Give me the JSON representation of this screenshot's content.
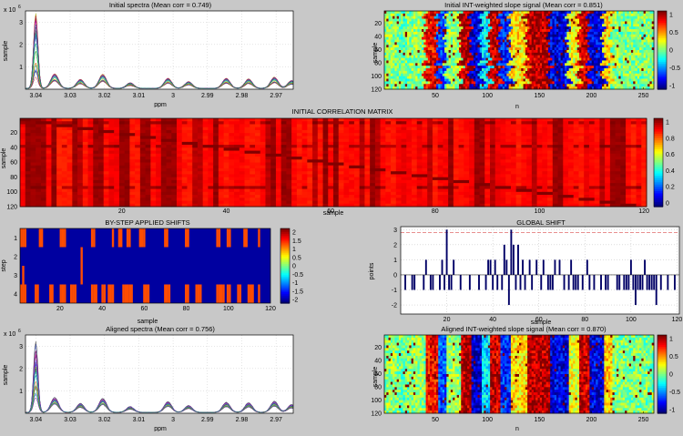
{
  "panels": {
    "spectra_initial": {
      "title": "Initial spectra (Mean corr = 0.749)",
      "xlabel": "ppm",
      "ylabel": "sample",
      "exp": "x 10",
      "exp_power": "6",
      "xticks": [
        "3.04",
        "3.03",
        "3.02",
        "3.01",
        "3",
        "2.99",
        "2.98",
        "2.97"
      ],
      "yticks": [
        "1",
        "2",
        "3"
      ]
    },
    "slope_initial": {
      "title": "Initial INT-weighted slope signal (Mean corr = 0.851)",
      "xlabel": "n",
      "ylabel": "sample",
      "xticks": [
        "50",
        "100",
        "150",
        "200",
        "250"
      ],
      "yticks": [
        "20",
        "40",
        "60",
        "80",
        "100",
        "120"
      ],
      "cbar_ticks": [
        "1",
        "0.5",
        "0",
        "-0.5",
        "-1"
      ]
    },
    "corr_matrix": {
      "title": "INITIAL CORRELATION MATRIX",
      "xlabel": "sample",
      "ylabel": "sample",
      "xticks": [
        "20",
        "40",
        "60",
        "80",
        "100",
        "120"
      ],
      "yticks": [
        "20",
        "40",
        "60",
        "80",
        "100",
        "120"
      ],
      "cbar_ticks": [
        "1",
        "0.8",
        "0.6",
        "0.4",
        "0.2",
        "0"
      ]
    },
    "shifts": {
      "title": "BY-STEP APPLIED SHIFTS",
      "xlabel": "sample",
      "ylabel": "step",
      "xticks": [
        "20",
        "40",
        "60",
        "80",
        "100",
        "120"
      ],
      "yticks": [
        "1",
        "2",
        "3",
        "4"
      ],
      "cbar_ticks": [
        "2",
        "1.5",
        "1",
        "0.5",
        "0",
        "-0.5",
        "-1",
        "-1.5",
        "-2"
      ]
    },
    "global_shift": {
      "title": "GLOBAL SHIFT",
      "xlabel": "sample",
      "ylabel": "points",
      "xticks": [
        "20",
        "40",
        "60",
        "80",
        "100",
        "120"
      ],
      "yticks": [
        "3",
        "2",
        "1",
        "0",
        "-1",
        "-2"
      ]
    },
    "spectra_aligned": {
      "title": "Aligned spectra (Mean corr = 0.756)",
      "xlabel": "ppm",
      "ylabel": "sample",
      "exp": "x 10",
      "exp_power": "6",
      "xticks": [
        "3.04",
        "3.03",
        "3.02",
        "3.01",
        "3",
        "2.99",
        "2.98",
        "2.97"
      ],
      "yticks": [
        "1",
        "2",
        "3"
      ]
    },
    "slope_aligned": {
      "title": "Aligned INT-weighted slope signal (Mean corr = 0.870)",
      "xlabel": "n",
      "ylabel": "sample",
      "xticks": [
        "50",
        "100",
        "150",
        "200",
        "250"
      ],
      "yticks": [
        "20",
        "40",
        "60",
        "80",
        "100",
        "120"
      ],
      "cbar_ticks": [
        "1",
        "0.5",
        "0",
        "-0.5",
        "-1"
      ]
    }
  },
  "chart_data": [
    {
      "type": "line",
      "title": "Initial spectra (Mean corr = 0.749)",
      "xlabel": "ppm",
      "ylabel": "sample",
      "xlim": [
        3.043,
        2.965
      ],
      "ylim": [
        0,
        3.5
      ],
      "y_exponent": 6,
      "x_reversed": true,
      "peaks_ppm": [
        3.04,
        3.0345,
        3.027,
        3.0205,
        3.0125,
        3.0015,
        2.9955,
        2.9845,
        2.978,
        2.9705,
        2.9655
      ],
      "peak_heights_max": [
        3.35,
        0.65,
        0.4,
        0.62,
        0.25,
        0.45,
        0.3,
        0.45,
        0.42,
        0.5,
        0.35
      ],
      "note": ""
    },
    {
      "type": "heatmap",
      "title": "Initial INT-weighted slope signal (Mean corr = 0.851)",
      "xlabel": "n",
      "ylabel": "sample",
      "xlim": [
        1,
        260
      ],
      "ylim": [
        1,
        120
      ],
      "clim": [
        -1,
        1
      ]
    },
    {
      "type": "heatmap",
      "title": "INITIAL CORRELATION MATRIX",
      "xlabel": "sample",
      "ylabel": "sample",
      "xlim": [
        1,
        120
      ],
      "ylim": [
        1,
        120
      ],
      "clim": [
        0,
        1
      ]
    },
    {
      "type": "heatmap",
      "title": "BY-STEP APPLIED SHIFTS",
      "xlabel": "sample",
      "ylabel": "step",
      "xlim": [
        1,
        120
      ],
      "ylim": [
        1,
        4
      ],
      "clim": [
        -2,
        2
      ],
      "steps": [
        {
          "step": 1,
          "shifted_samples": [
            1,
            2,
            3,
            10,
            11,
            20,
            21,
            22,
            35,
            36,
            45,
            48,
            49,
            52,
            53,
            58,
            59,
            60,
            70,
            71,
            80,
            81,
            95,
            96,
            100,
            101,
            108,
            109,
            115
          ]
        },
        {
          "step": 2,
          "shifted_samples": [
            30
          ]
        },
        {
          "step": 3,
          "shifted_samples": [
            2,
            30
          ]
        },
        {
          "step": 4,
          "shifted_samples": [
            1,
            2,
            3,
            8,
            9,
            15,
            16,
            20,
            21,
            22,
            25,
            26,
            27,
            35,
            36,
            37,
            40,
            41,
            43,
            44,
            45,
            50,
            51,
            52,
            53,
            54,
            60,
            61,
            62,
            70,
            71,
            72,
            80,
            81,
            85,
            86,
            87,
            95,
            96,
            97,
            98,
            100,
            101,
            105,
            106,
            110,
            111,
            112,
            115
          ]
        }
      ]
    },
    {
      "type": "bar",
      "title": "GLOBAL SHIFT",
      "xlabel": "sample",
      "ylabel": "points",
      "xlim": [
        0,
        121
      ],
      "ylim": [
        -2.6,
        3.2
      ],
      "threshold_dashed": 2.8,
      "x": [
        2,
        5,
        6,
        10,
        11,
        13,
        14,
        17,
        18,
        19,
        20,
        21,
        22,
        23,
        26,
        30,
        34,
        37,
        38,
        39,
        40,
        41,
        42,
        44,
        45,
        46,
        47,
        48,
        49,
        50,
        51,
        52,
        53,
        54,
        56,
        57,
        59,
        61,
        62,
        64,
        65,
        66,
        67,
        69,
        71,
        73,
        74,
        75,
        76,
        77,
        79,
        81,
        82,
        84,
        87,
        89,
        90,
        94,
        95,
        97,
        98,
        99,
        100,
        101,
        102,
        103,
        104,
        105,
        106,
        107,
        108,
        109,
        110,
        111,
        113,
        116,
        119
      ],
      "values": [
        -1,
        -1,
        -1,
        -1,
        1,
        -1,
        -1,
        -1,
        1,
        -1,
        3,
        -1,
        -1,
        1,
        -1,
        -1,
        -1,
        -1,
        1,
        1,
        -1,
        1,
        -1,
        -1,
        2,
        1,
        -2,
        3,
        2,
        -1,
        2,
        -1,
        1,
        -1,
        1,
        -1,
        1,
        -1,
        1,
        -1,
        -1,
        -1,
        1,
        1,
        -1,
        -1,
        1,
        -1,
        -1,
        -1,
        -1,
        1,
        -1,
        -1,
        -1,
        -1,
        -1,
        -1,
        -1,
        -1,
        -1,
        -1,
        1,
        -1,
        -2,
        -1,
        -1,
        -1,
        1,
        -1,
        -1,
        -1,
        -1,
        -2,
        -1,
        -1,
        -1
      ]
    },
    {
      "type": "line",
      "title": "Aligned spectra (Mean corr = 0.756)",
      "xlabel": "ppm",
      "ylabel": "sample",
      "xlim": [
        3.043,
        2.965
      ],
      "ylim": [
        0,
        3.5
      ],
      "y_exponent": 6,
      "x_reversed": true,
      "peaks_ppm": [
        3.04,
        3.0345,
        3.027,
        3.0205,
        3.0125,
        3.0015,
        2.9955,
        2.9845,
        2.978,
        2.9705,
        2.9655
      ],
      "peak_heights_max": [
        3.4,
        0.7,
        0.42,
        0.65,
        0.27,
        0.5,
        0.32,
        0.47,
        0.45,
        0.52,
        0.36
      ]
    },
    {
      "type": "heatmap",
      "title": "Aligned INT-weighted slope signal (Mean corr = 0.870)",
      "xlabel": "n",
      "ylabel": "sample",
      "xlim": [
        1,
        260
      ],
      "ylim": [
        1,
        120
      ],
      "clim": [
        -1,
        1
      ]
    }
  ],
  "colors": {
    "figure_bg": "#c8c8c8",
    "axes_bg": "#ffffff",
    "bar_color": "#000066",
    "threshold_color": "#e06a6a"
  }
}
